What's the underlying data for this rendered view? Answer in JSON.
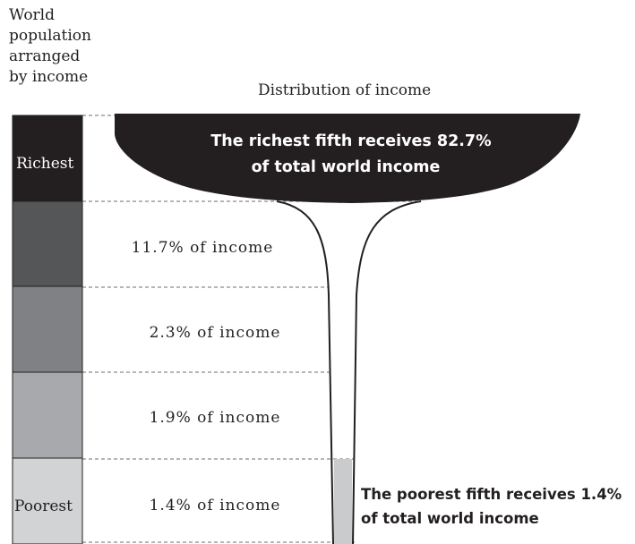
{
  "header": {
    "left_title_lines": [
      "World",
      "population",
      "arranged",
      "by income"
    ],
    "right_title": "Distribution of income"
  },
  "colors": {
    "richest": "#231f20",
    "fifth_2": "#555657",
    "fifth_3": "#808184",
    "fifth_4": "#a7a9ac",
    "poorest": "#d1d3d4",
    "funnel": "#231f20",
    "poorest_bar": "#c9cbcd"
  },
  "chart_data": {
    "type": "funnel",
    "categories": [
      "Richest",
      "",
      "",
      "",
      "Poorest"
    ],
    "values": [
      82.7,
      11.7,
      2.3,
      1.9,
      1.4
    ],
    "unit": "% of total world income",
    "labels": [
      {
        "line1": "The richest fifth receives 82.7%",
        "line2": "of total world income"
      },
      {
        "text": "11.7% of income"
      },
      {
        "text": "2.3% of income"
      },
      {
        "text": "1.9% of income"
      },
      {
        "text": "1.4% of income",
        "line1": "The poorest fifth receives 1.4%",
        "line2": "of total world income"
      }
    ]
  }
}
